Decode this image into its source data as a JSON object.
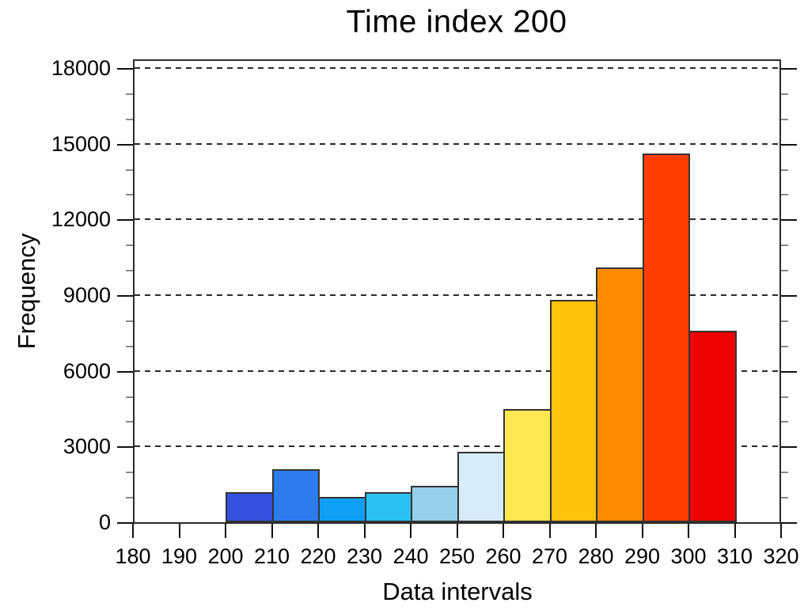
{
  "page": {
    "background_color": "#ffffff",
    "text_color": "#000000"
  },
  "chart_data": {
    "type": "bar",
    "subtype": "histogram",
    "title": "Time index 200",
    "xlabel": "Data intervals",
    "ylabel": "Frequency",
    "xlim": [
      180,
      320
    ],
    "ylim": [
      0,
      18000
    ],
    "x_ticks": [
      180,
      190,
      200,
      210,
      220,
      230,
      240,
      250,
      260,
      270,
      280,
      290,
      300,
      310,
      320
    ],
    "y_major_ticks": [
      0,
      3000,
      6000,
      9000,
      12000,
      15000,
      18000
    ],
    "y_minor_ticks": [
      1000,
      2000,
      4000,
      5000,
      7000,
      8000,
      10000,
      11000,
      13000,
      14000,
      16000,
      17000
    ],
    "grid": "horizontal dashed lines at y major ticks, drawn behind bars",
    "legend": "none",
    "bins": [
      {
        "x0": 200,
        "x1": 210,
        "value": 1200,
        "color": "#3351DE"
      },
      {
        "x0": 210,
        "x1": 220,
        "value": 2100,
        "color": "#2F7BEE"
      },
      {
        "x0": 220,
        "x1": 230,
        "value": 1000,
        "color": "#0FA0F6"
      },
      {
        "x0": 230,
        "x1": 240,
        "value": 1200,
        "color": "#2BC2F2"
      },
      {
        "x0": 240,
        "x1": 250,
        "value": 1450,
        "color": "#96CFE9"
      },
      {
        "x0": 250,
        "x1": 260,
        "value": 2800,
        "color": "#D8EBF8"
      },
      {
        "x0": 260,
        "x1": 270,
        "value": 4500,
        "color": "#FFE84F"
      },
      {
        "x0": 270,
        "x1": 280,
        "value": 8800,
        "color": "#FFC30B"
      },
      {
        "x0": 280,
        "x1": 290,
        "value": 10100,
        "color": "#FF8C00"
      },
      {
        "x0": 290,
        "x1": 300,
        "value": 14600,
        "color": "#FF3D00"
      },
      {
        "x0": 300,
        "x1": 310,
        "value": 7600,
        "color": "#EC0000"
      }
    ]
  }
}
